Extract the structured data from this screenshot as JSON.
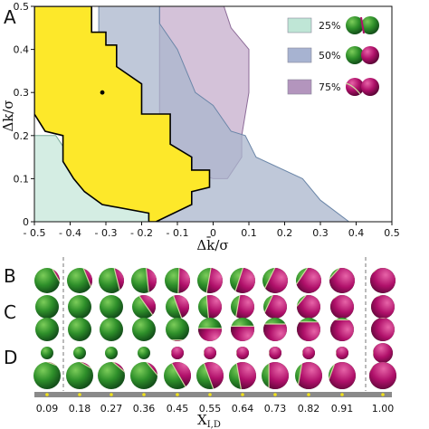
{
  "panels": {
    "a": "A",
    "b": "B",
    "c": "C",
    "d": "D"
  },
  "chart_data": {
    "type": "area",
    "xlabel": "Δk̄/σ",
    "ylabel": "Δk/σ",
    "xlim": [
      -0.5,
      0.5
    ],
    "ylim": [
      0,
      0.5
    ],
    "x_ticks": [
      "- 0.5",
      "- 0.4",
      "- 0.3",
      "- 0.2",
      "- 0.1",
      "0",
      "0.1",
      "0.2",
      "0.3",
      "0.4",
      "0.5"
    ],
    "x_tick_values": [
      -0.5,
      -0.4,
      -0.3,
      -0.2,
      -0.1,
      0,
      0.1,
      0.2,
      0.3,
      0.4,
      0.5
    ],
    "y_ticks": [
      "0",
      "0.1",
      "0.2",
      "0.3",
      "0.4",
      "0.5"
    ],
    "y_tick_values": [
      0,
      0.1,
      0.2,
      0.3,
      0.4,
      0.5
    ],
    "legend": [
      {
        "label": "25%",
        "color": "#bfe6d6"
      },
      {
        "label": "50%",
        "color": "#a7b3d1"
      },
      {
        "label": "75%",
        "color": "#b395bd"
      }
    ],
    "regions": [
      {
        "name": "75%",
        "fill": "#c6adcc",
        "stroke": "#8c6b98",
        "points": [
          [
            -0.15,
            0.5
          ],
          [
            0.03,
            0.5
          ],
          [
            0.05,
            0.45
          ],
          [
            0.1,
            0.4
          ],
          [
            0.1,
            0.3
          ],
          [
            0.08,
            0.2
          ],
          [
            0.08,
            0.15
          ],
          [
            0.04,
            0.1
          ],
          [
            0,
            0.1
          ],
          [
            -0.2,
            0.15
          ],
          [
            -0.15,
            0.25
          ],
          [
            -0.15,
            0.5
          ]
        ]
      },
      {
        "name": "50%",
        "fill": "#a9b5cc",
        "stroke": "#6b86a8",
        "points": [
          [
            -0.32,
            0.5
          ],
          [
            -0.15,
            0.5
          ],
          [
            -0.15,
            0.46
          ],
          [
            -0.1,
            0.4
          ],
          [
            -0.05,
            0.3
          ],
          [
            0,
            0.27
          ],
          [
            0.05,
            0.21
          ],
          [
            0.09,
            0.2
          ],
          [
            0.12,
            0.15
          ],
          [
            0.25,
            0.1
          ],
          [
            0.3,
            0.05
          ],
          [
            0.38,
            0
          ],
          [
            -0.17,
            0
          ],
          [
            -0.2,
            0.05
          ],
          [
            -0.35,
            0.25
          ],
          [
            -0.32,
            0.4
          ],
          [
            -0.32,
            0.5
          ]
        ]
      },
      {
        "name": "25%",
        "fill": "#c5e7da",
        "stroke": "#78a998",
        "points": [
          [
            -0.5,
            0
          ],
          [
            -0.5,
            0.2
          ],
          [
            -0.44,
            0.2
          ],
          [
            -0.4,
            0.15
          ],
          [
            -0.2,
            0.15
          ],
          [
            -0.15,
            0.1
          ],
          [
            -0.15,
            0
          ],
          [
            -0.5,
            0
          ]
        ]
      },
      {
        "name": "yellow",
        "fill": "#fde82a",
        "stroke": "#000000",
        "points": [
          [
            -0.5,
            0.25
          ],
          [
            -0.5,
            0.5
          ],
          [
            -0.34,
            0.5
          ],
          [
            -0.34,
            0.44
          ],
          [
            -0.3,
            0.44
          ],
          [
            -0.3,
            0.41
          ],
          [
            -0.27,
            0.41
          ],
          [
            -0.27,
            0.36
          ],
          [
            -0.2,
            0.32
          ],
          [
            -0.2,
            0.25
          ],
          [
            -0.12,
            0.25
          ],
          [
            -0.12,
            0.18
          ],
          [
            -0.06,
            0.15
          ],
          [
            -0.06,
            0.12
          ],
          [
            -0.01,
            0.12
          ],
          [
            -0.01,
            0.08
          ],
          [
            -0.06,
            0.07
          ],
          [
            -0.06,
            0.04
          ],
          [
            -0.16,
            0
          ],
          [
            -0.18,
            0
          ],
          [
            -0.18,
            0.02
          ],
          [
            -0.31,
            0.04
          ],
          [
            -0.36,
            0.07
          ],
          [
            -0.39,
            0.1
          ],
          [
            -0.42,
            0.14
          ],
          [
            -0.42,
            0.2
          ],
          [
            -0.47,
            0.21
          ],
          [
            -0.5,
            0.25
          ]
        ]
      }
    ],
    "point": {
      "x": -0.31,
      "y": 0.3
    }
  },
  "xid": {
    "label": "X",
    "label_sub": "I,D",
    "values": [
      "0.09",
      "0.18",
      "0.27",
      "0.36",
      "0.45",
      "0.55",
      "0.64",
      "0.73",
      "0.82",
      "0.91",
      "1.00"
    ],
    "fractions": [
      0.09,
      0.18,
      0.27,
      0.36,
      0.45,
      0.55,
      0.64,
      0.73,
      0.82,
      0.91,
      1.0
    ]
  },
  "colors": {
    "green": "#2e8f2a",
    "magenta": "#b0106a",
    "yellow": "#fde82a",
    "boundary": "#cdd6a0"
  }
}
